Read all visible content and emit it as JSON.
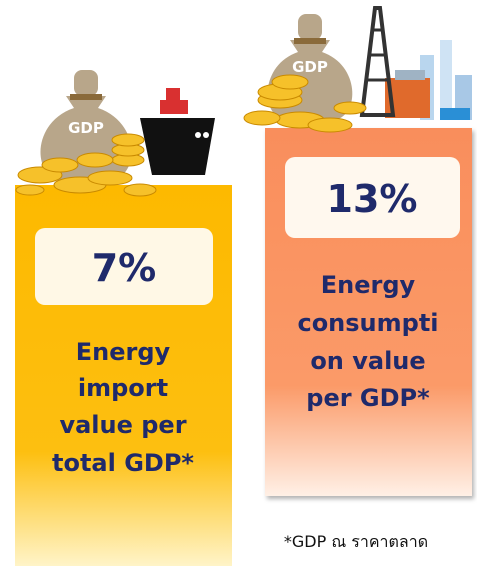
{
  "left": {
    "bag_label": "GDP",
    "value": "7%",
    "lines": [
      "Energy",
      "import",
      "value per",
      "total GDP*"
    ]
  },
  "right": {
    "bag_label": "GDP",
    "value": "13%",
    "lines": [
      "Energy",
      "consumpti",
      "on value",
      "per GDP*"
    ]
  },
  "footnote": "*GDP ณ ราคาตลาด"
}
